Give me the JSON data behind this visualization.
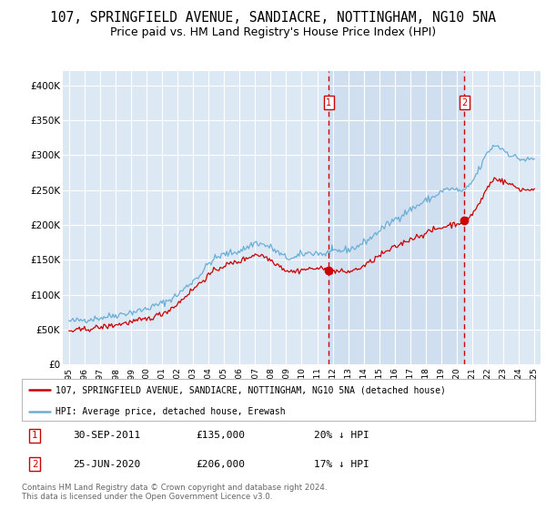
{
  "title": "107, SPRINGFIELD AVENUE, SANDIACRE, NOTTINGHAM, NG10 5NA",
  "subtitle": "Price paid vs. HM Land Registry's House Price Index (HPI)",
  "title_fontsize": 10.5,
  "subtitle_fontsize": 9,
  "bg_color": "#dde8f5",
  "plot_bg_color": "#dde8f5",
  "shade_color": "#c8d9ee",
  "legend_line1": "107, SPRINGFIELD AVENUE, SANDIACRE, NOTTINGHAM, NG10 5NA (detached house)",
  "legend_line2": "HPI: Average price, detached house, Erewash",
  "footer": "Contains HM Land Registry data © Crown copyright and database right 2024.\nThis data is licensed under the Open Government Licence v3.0.",
  "sale1_date_label": "30-SEP-2011",
  "sale1_price": 135000,
  "sale1_pct": "20% ↓ HPI",
  "sale2_date_label": "25-JUN-2020",
  "sale2_price": 206000,
  "sale2_pct": "17% ↓ HPI",
  "sale1_x": 2011.75,
  "sale2_x": 2020.5,
  "red_color": "#cc0000",
  "blue_color": "#6aaed6",
  "marker_color": "#cc0000",
  "dashed_color": "#cc0000",
  "ylim": [
    0,
    420000
  ],
  "yticks": [
    0,
    50000,
    100000,
    150000,
    200000,
    250000,
    300000,
    350000,
    400000
  ],
  "ytick_labels": [
    "£0",
    "£50K",
    "£100K",
    "£150K",
    "£200K",
    "£250K",
    "£300K",
    "£350K",
    "£400K"
  ],
  "xlim_start": 1994.6,
  "xlim_end": 2025.4,
  "xticks": [
    1995,
    1996,
    1997,
    1998,
    1999,
    2000,
    2001,
    2002,
    2003,
    2004,
    2005,
    2006,
    2007,
    2008,
    2009,
    2010,
    2011,
    2012,
    2013,
    2014,
    2015,
    2016,
    2017,
    2018,
    2019,
    2020,
    2021,
    2022,
    2023,
    2024,
    2025
  ]
}
